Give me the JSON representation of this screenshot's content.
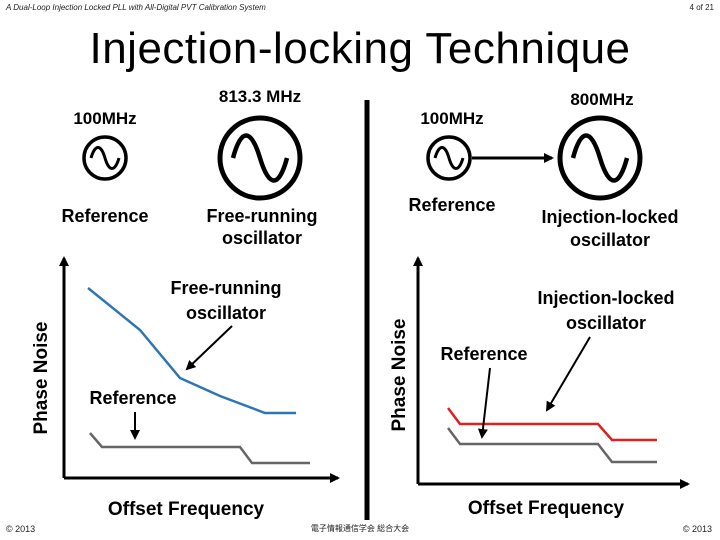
{
  "header": {
    "left": "A Dual-Loop Injection Locked PLL with All-Digital PVT Calibration System",
    "right": "4 of 21"
  },
  "title": "Injection-locking Technique",
  "left_panel": {
    "ref_freq": "100MHz",
    "osc_freq": "813.3 MHz",
    "ref_label": "Reference",
    "osc_label_1": "Free-running",
    "osc_label_2": "oscillator",
    "plot": {
      "ylabel": "Phase Noise",
      "xlabel": "Offset Frequency",
      "annot_1a": "Free-running",
      "annot_1b": "oscillator",
      "annot_2": "Reference"
    }
  },
  "right_panel": {
    "ref_freq": "100MHz",
    "osc_freq": "800MHz",
    "ref_label": "Reference",
    "osc_label_1": "Injection-locked",
    "osc_label_2": "oscillator",
    "plot": {
      "ylabel": "Phase Noise",
      "xlabel": "Offset Frequency",
      "annot_1a": "Injection-locked",
      "annot_1b": "oscillator",
      "annot_2": "Reference"
    }
  },
  "colors": {
    "free_running_curve": "#2e75b6",
    "reference_curve": "#666666",
    "injection_locked_curve": "#e02020",
    "divider": "#000000"
  },
  "footer": {
    "left": "© 2013",
    "center": "電子情報通信学会 総合大会",
    "right": "© 2013"
  }
}
